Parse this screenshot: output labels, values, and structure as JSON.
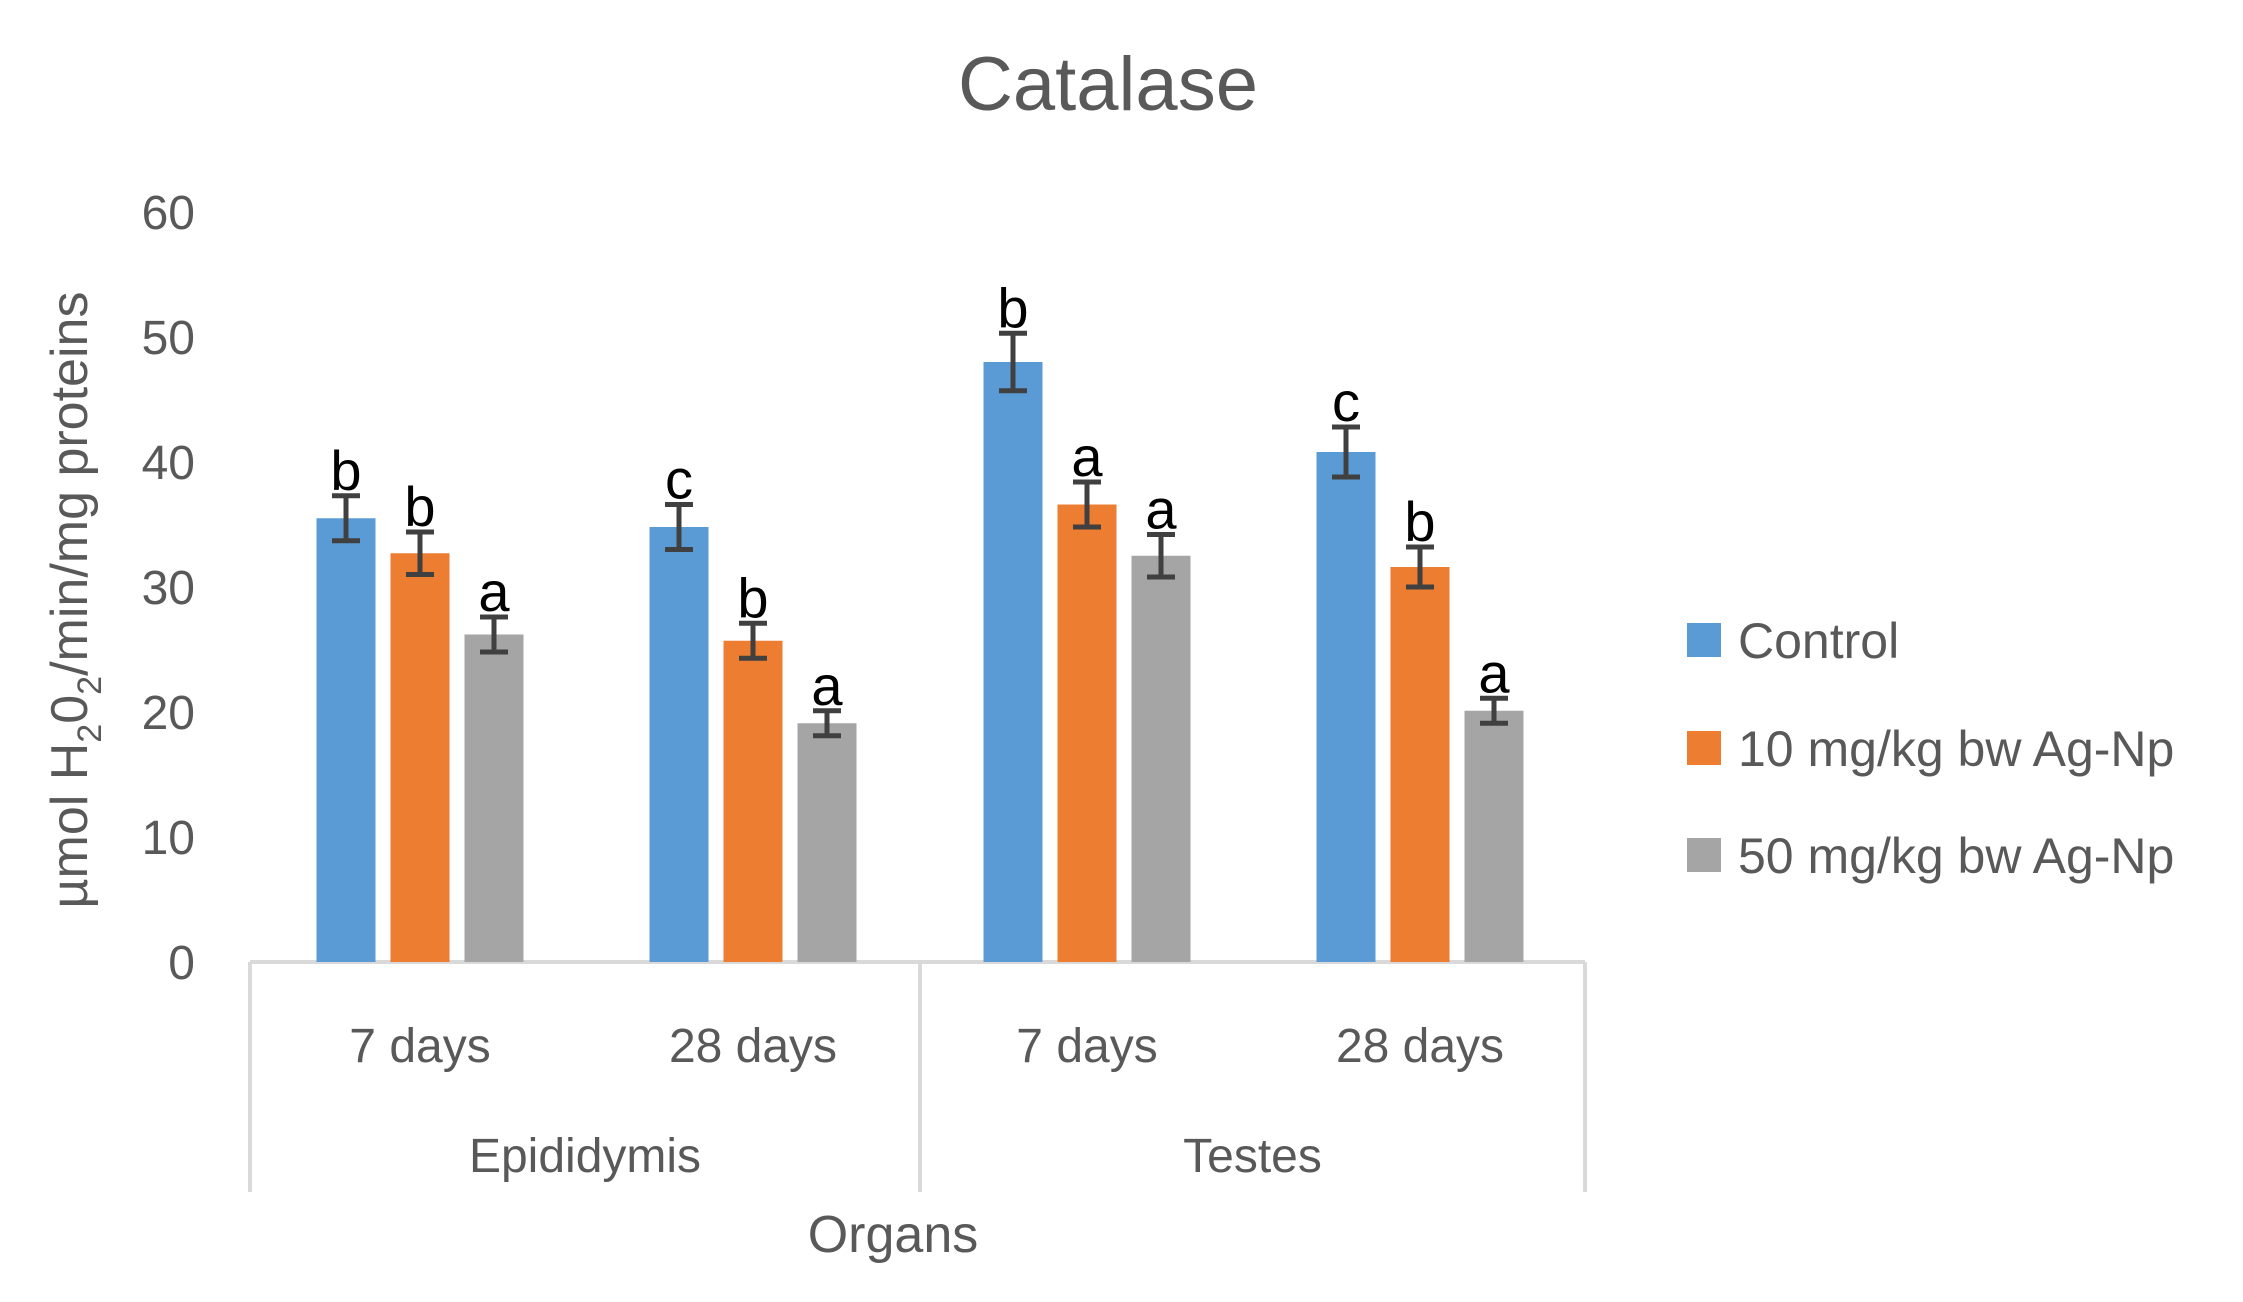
{
  "chart_data": {
    "type": "bar",
    "title": "Catalase",
    "xlabel": "Organs",
    "ylabel": "µmol H202/min/mg proteins",
    "ylabel_parts": [
      "µmol H",
      "2",
      "0",
      "2",
      "/min/mg  proteins"
    ],
    "ylim": [
      0,
      60
    ],
    "yticks": [
      0,
      10,
      20,
      30,
      40,
      50,
      60
    ],
    "grid": false,
    "legend_position": "right",
    "groups": [
      {
        "label": "Epididymis",
        "categories": [
          "7 days",
          "28 days"
        ]
      },
      {
        "label": "Testes",
        "categories": [
          "7 days",
          "28 days"
        ]
      }
    ],
    "series": [
      {
        "name": "Control",
        "color": "#5b9bd5",
        "values": [
          35.5,
          34.8,
          48.0,
          40.8
        ],
        "errors": [
          1.8,
          1.8,
          2.3,
          2.0
        ],
        "letters": [
          "b",
          "c",
          "b",
          "c"
        ]
      },
      {
        "name": "10 mg/kg bw Ag-Np",
        "color": "#ed7d31",
        "values": [
          32.7,
          25.7,
          36.6,
          31.6
        ],
        "errors": [
          1.7,
          1.4,
          1.8,
          1.6
        ],
        "letters": [
          "b",
          "b",
          "a",
          "b"
        ]
      },
      {
        "name": "50 mg/kg bw Ag-Np",
        "color": "#a5a5a5",
        "values": [
          26.2,
          19.1,
          32.5,
          20.1
        ],
        "errors": [
          1.4,
          1.0,
          1.7,
          1.0
        ],
        "letters": [
          "a",
          "a",
          "a",
          "a"
        ]
      }
    ]
  }
}
